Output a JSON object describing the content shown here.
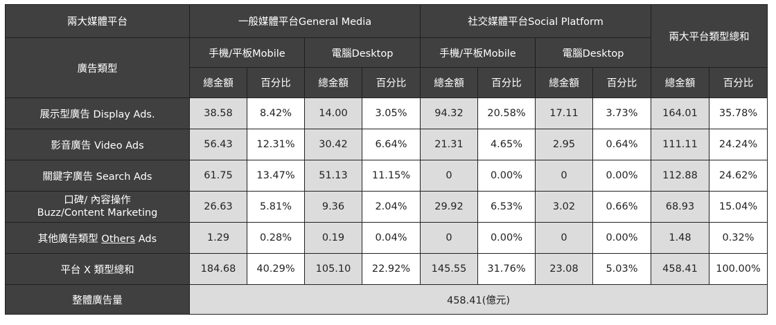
{
  "header": {
    "top_left": "兩大媒體平台",
    "general_media": "一般媒體平台General Media",
    "social_platform": "社交媒體平台Social Platform",
    "grand_total": "兩大平台類型總和",
    "ad_type": "廣告類型",
    "mobile": "手機/平板Mobile",
    "desktop": "電腦Desktop",
    "amount": "總金額",
    "percent": "百分比"
  },
  "rows": [
    {
      "label": "展示型廣告 Display Ads.",
      "cells": [
        "38.58",
        "8.42%",
        "14.00",
        "3.05%",
        "94.32",
        "20.58%",
        "17.11",
        "3.73%",
        "164.01",
        "35.78%"
      ]
    },
    {
      "label": "影音廣告 Video Ads",
      "cells": [
        "56.43",
        "12.31%",
        "30.42",
        "6.64%",
        "21.31",
        "4.65%",
        "2.95",
        "0.64%",
        "111.11",
        "24.24%"
      ]
    },
    {
      "label": "關鍵字廣告 Search Ads",
      "cells": [
        "61.75",
        "13.47%",
        "51.13",
        "11.15%",
        "0",
        "0.00%",
        "0",
        "0.00%",
        "112.88",
        "24.62%"
      ]
    },
    {
      "label_line1": "口碑/ 內容操作",
      "label_line2": "Buzz/Content Marketing",
      "cells": [
        "26.63",
        "5.81%",
        "9.36",
        "2.04%",
        "29.92",
        "6.53%",
        "3.02",
        "0.66%",
        "68.93",
        "15.04%"
      ]
    },
    {
      "label_pre": "其他廣告類型 ",
      "label_link": "Others",
      "label_post": " Ads",
      "cells": [
        "1.29",
        "0.28%",
        "0.19",
        "0.04%",
        "0",
        "0.00%",
        "0",
        "0.00%",
        "1.48",
        "0.32%"
      ]
    },
    {
      "label": "平台 X 類型總和",
      "cells": [
        "184.68",
        "40.29%",
        "105.10",
        "22.92%",
        "145.55",
        "31.76%",
        "23.08",
        "5.03%",
        "458.41",
        "100.00%"
      ]
    }
  ],
  "footer": {
    "label": "整體廣告量",
    "value": "458.41(億元)"
  }
}
